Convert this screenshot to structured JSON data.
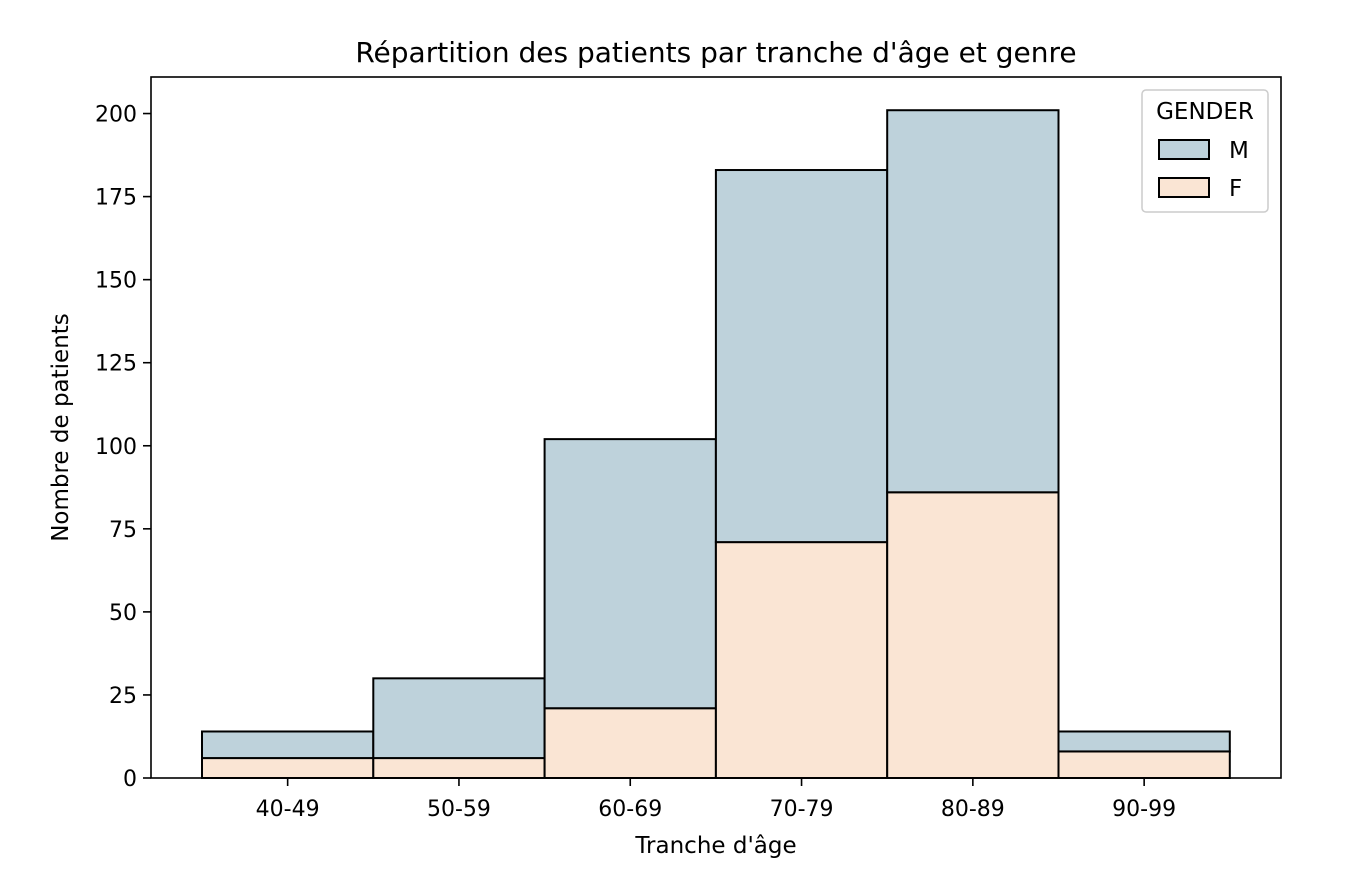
{
  "chart_data": {
    "type": "bar",
    "stacked": true,
    "title": "Répartition des patients par tranche d'âge et genre",
    "xlabel": "Tranche d'âge",
    "ylabel": "Nombre de patients",
    "categories": [
      "40-49",
      "50-59",
      "60-69",
      "70-79",
      "80-89",
      "90-99"
    ],
    "series": [
      {
        "name": "F",
        "values": [
          6,
          6,
          21,
          71,
          86,
          8
        ],
        "color": "#fae5d4"
      },
      {
        "name": "M",
        "values": [
          8,
          24,
          81,
          112,
          115,
          6
        ],
        "color": "#bed2db"
      }
    ],
    "totals": [
      14,
      30,
      102,
      183,
      201,
      14
    ],
    "ylim": [
      0,
      211
    ],
    "yticks": [
      0,
      25,
      50,
      75,
      100,
      125,
      150,
      175,
      200
    ],
    "grid": false,
    "legend": {
      "title": "GENDER",
      "placement": "top-right",
      "entries": [
        "M",
        "F"
      ]
    }
  }
}
